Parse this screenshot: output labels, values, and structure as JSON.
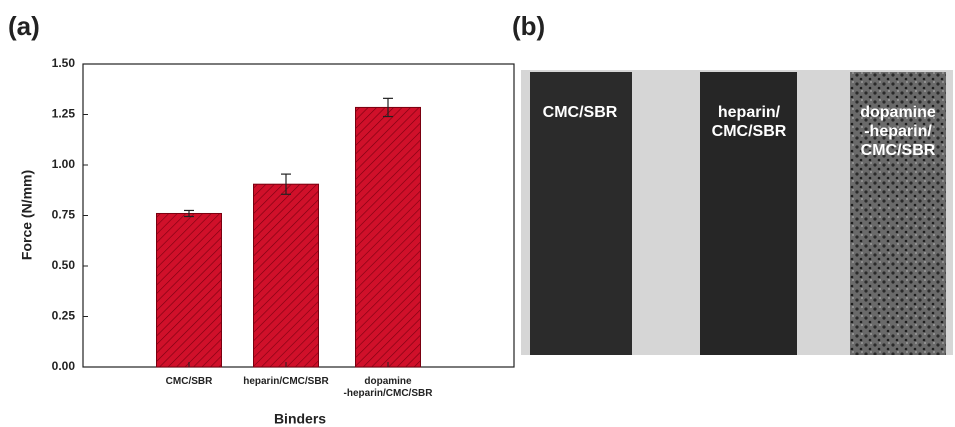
{
  "chart_data": {
    "type": "bar",
    "panel_label": "(a)",
    "x_label": "Binders",
    "y_label": "Force (N/mm)",
    "categories": [
      "CMC/SBR",
      "heparin/CMC/SBR",
      "dopamine\n-heparin/CMC/SBR"
    ],
    "values": [
      0.76,
      0.905,
      1.285
    ],
    "errors": [
      0.015,
      0.05,
      0.045
    ],
    "color": "#d0102a",
    "ylim": [
      0,
      1.5
    ],
    "yticks": [
      {
        "value": 0,
        "label": "0.00"
      },
      {
        "value": 0.25,
        "label": "0.25"
      },
      {
        "value": 0.5,
        "label": "0.50"
      },
      {
        "value": 0.75,
        "label": "0.75"
      },
      {
        "value": 1,
        "label": "1.00"
      },
      {
        "value": 1.25,
        "label": "1.25"
      },
      {
        "value": 1.5,
        "label": "1.50"
      }
    ]
  },
  "photo": {
    "panel_label": "(b)",
    "labels": [
      "CMC/SBR",
      "heparin/\nCMC/SBR",
      "dopamine\n-heparin/\nCMC/SBR"
    ]
  }
}
